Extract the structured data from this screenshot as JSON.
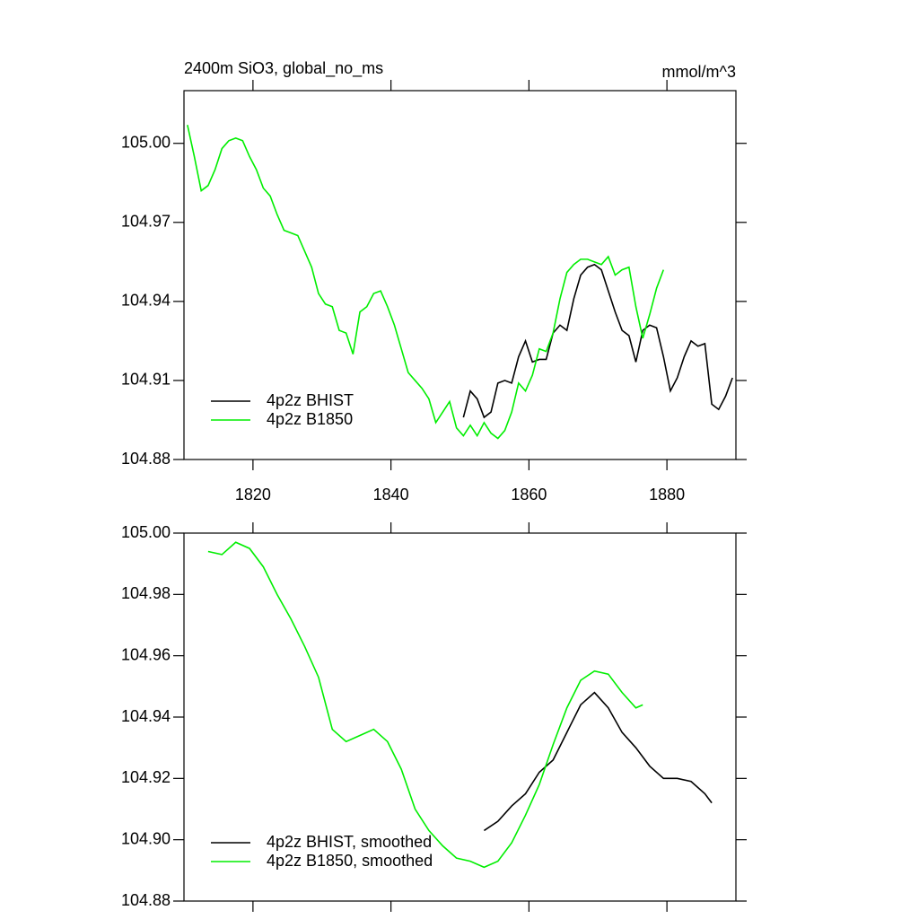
{
  "chart_data": [
    {
      "type": "line",
      "title": "2400m SiO3, global_no_ms",
      "unit_label": "mmol/m^3",
      "xlim": [
        1810,
        1890
      ],
      "xticks": [
        1820,
        1840,
        1860,
        1880
      ],
      "xtick_labels": true,
      "ylim": [
        104.88,
        105.02
      ],
      "yticks": [
        104.88,
        104.91,
        104.94,
        104.97,
        {
          "value": 105.0,
          "label": "105.00"
        }
      ],
      "legend": "lower left",
      "series": [
        {
          "name": "4p2z BHIST",
          "color": "#000000",
          "x": [
            1850.5,
            1851.5,
            1852.5,
            1853.5,
            1854.5,
            1855.5,
            1856.5,
            1857.5,
            1858.5,
            1859.5,
            1860.5,
            1861.5,
            1862.5,
            1863.5,
            1864.5,
            1865.5,
            1866.5,
            1867.5,
            1868.5,
            1869.5,
            1870.5,
            1871.5,
            1872.5,
            1873.5,
            1874.5,
            1875.5,
            1876.5,
            1877.5,
            1878.5,
            1879.5,
            1880.5,
            1881.5,
            1882.5,
            1883.5,
            1884.5,
            1885.5,
            1886.5,
            1887.5,
            1888.5,
            1889.5
          ],
          "values": [
            104.896,
            104.906,
            104.903,
            104.896,
            104.898,
            104.909,
            104.91,
            104.909,
            104.919,
            104.925,
            104.917,
            104.918,
            104.918,
            104.928,
            104.931,
            104.929,
            104.941,
            104.95,
            104.953,
            104.954,
            104.952,
            104.944,
            104.936,
            104.929,
            104.927,
            104.917,
            104.929,
            104.931,
            104.93,
            104.919,
            104.906,
            104.911,
            104.919,
            104.925,
            104.923,
            104.924,
            104.901,
            104.899,
            104.904,
            104.911
          ]
        },
        {
          "name": "4p2z B1850",
          "color": "#00ee00",
          "x": [
            1810.5,
            1811.5,
            1812.5,
            1813.5,
            1814.5,
            1815.5,
            1816.5,
            1817.5,
            1818.5,
            1819.5,
            1820.5,
            1821.5,
            1822.5,
            1823.5,
            1824.5,
            1825.5,
            1826.5,
            1827.5,
            1828.5,
            1829.5,
            1830.5,
            1831.5,
            1832.5,
            1833.5,
            1834.5,
            1835.5,
            1836.5,
            1837.5,
            1838.5,
            1839.5,
            1840.5,
            1841.5,
            1842.5,
            1843.5,
            1844.5,
            1845.5,
            1846.5,
            1847.5,
            1848.5,
            1849.5,
            1850.5,
            1851.5,
            1852.5,
            1853.5,
            1854.5,
            1855.5,
            1856.5,
            1857.5,
            1858.5,
            1859.5,
            1860.5,
            1861.5,
            1862.5,
            1863.5,
            1864.5,
            1865.5,
            1866.5,
            1867.5,
            1868.5,
            1869.5,
            1870.5,
            1871.5,
            1872.5,
            1873.5,
            1874.5,
            1875.5,
            1876.5,
            1877.5,
            1878.5,
            1879.5
          ],
          "values": [
            105.007,
            104.995,
            104.982,
            104.984,
            104.99,
            104.998,
            105.001,
            105.002,
            105.001,
            104.995,
            104.99,
            104.983,
            104.98,
            104.973,
            104.967,
            104.966,
            104.965,
            104.959,
            104.953,
            104.943,
            104.939,
            104.938,
            104.929,
            104.928,
            104.92,
            104.936,
            104.938,
            104.943,
            104.944,
            104.938,
            104.931,
            104.922,
            104.913,
            104.91,
            104.907,
            104.903,
            104.894,
            104.898,
            104.902,
            104.892,
            104.889,
            104.893,
            104.889,
            104.894,
            104.89,
            104.888,
            104.891,
            104.898,
            104.909,
            104.906,
            104.912,
            104.922,
            104.921,
            104.928,
            104.941,
            104.951,
            104.954,
            104.956,
            104.956,
            104.955,
            104.954,
            104.957,
            104.95,
            104.952,
            104.953,
            104.938,
            104.926,
            104.935,
            104.945,
            104.952
          ]
        }
      ]
    },
    {
      "type": "line",
      "xlim": [
        1810,
        1890
      ],
      "xticks": [
        1820,
        1840,
        1860,
        1880
      ],
      "xtick_labels": false,
      "ylim": [
        104.88,
        105.0
      ],
      "yticks": [
        104.88,
        {
          "value": 104.9,
          "label": "104.90"
        },
        104.92,
        104.94,
        104.96,
        104.98,
        {
          "value": 105.0,
          "label": "105.00"
        }
      ],
      "legend": "lower left",
      "series": [
        {
          "name": "4p2z BHIST, smoothed",
          "color": "#000000",
          "x": [
            1853.5,
            1855.5,
            1857.5,
            1859.5,
            1861.5,
            1863.5,
            1865.5,
            1867.5,
            1869.5,
            1871.5,
            1873.5,
            1875.5,
            1877.5,
            1879.5,
            1881.5,
            1883.5,
            1885.5,
            1886.5
          ],
          "values": [
            104.903,
            104.906,
            104.911,
            104.915,
            104.922,
            104.926,
            104.935,
            104.944,
            104.948,
            104.943,
            104.935,
            104.93,
            104.924,
            104.92,
            104.92,
            104.919,
            104.915,
            104.912
          ]
        },
        {
          "name": "4p2z B1850, smoothed",
          "color": "#00ee00",
          "x": [
            1813.5,
            1815.5,
            1817.5,
            1819.5,
            1821.5,
            1823.5,
            1825.5,
            1827.5,
            1829.5,
            1831.5,
            1833.5,
            1835.5,
            1837.5,
            1839.5,
            1841.5,
            1843.5,
            1845.5,
            1847.5,
            1849.5,
            1851.5,
            1853.5,
            1855.5,
            1857.5,
            1859.5,
            1861.5,
            1863.5,
            1865.5,
            1867.5,
            1869.5,
            1871.5,
            1873.5,
            1875.5,
            1876.5
          ],
          "values": [
            104.994,
            104.993,
            104.997,
            104.995,
            104.989,
            104.98,
            104.972,
            104.963,
            104.953,
            104.936,
            104.932,
            104.934,
            104.936,
            104.932,
            104.923,
            104.91,
            104.903,
            104.898,
            104.894,
            104.893,
            104.891,
            104.893,
            104.899,
            104.908,
            104.918,
            104.931,
            104.943,
            104.952,
            104.955,
            104.954,
            104.948,
            104.943,
            104.944
          ]
        }
      ]
    }
  ]
}
